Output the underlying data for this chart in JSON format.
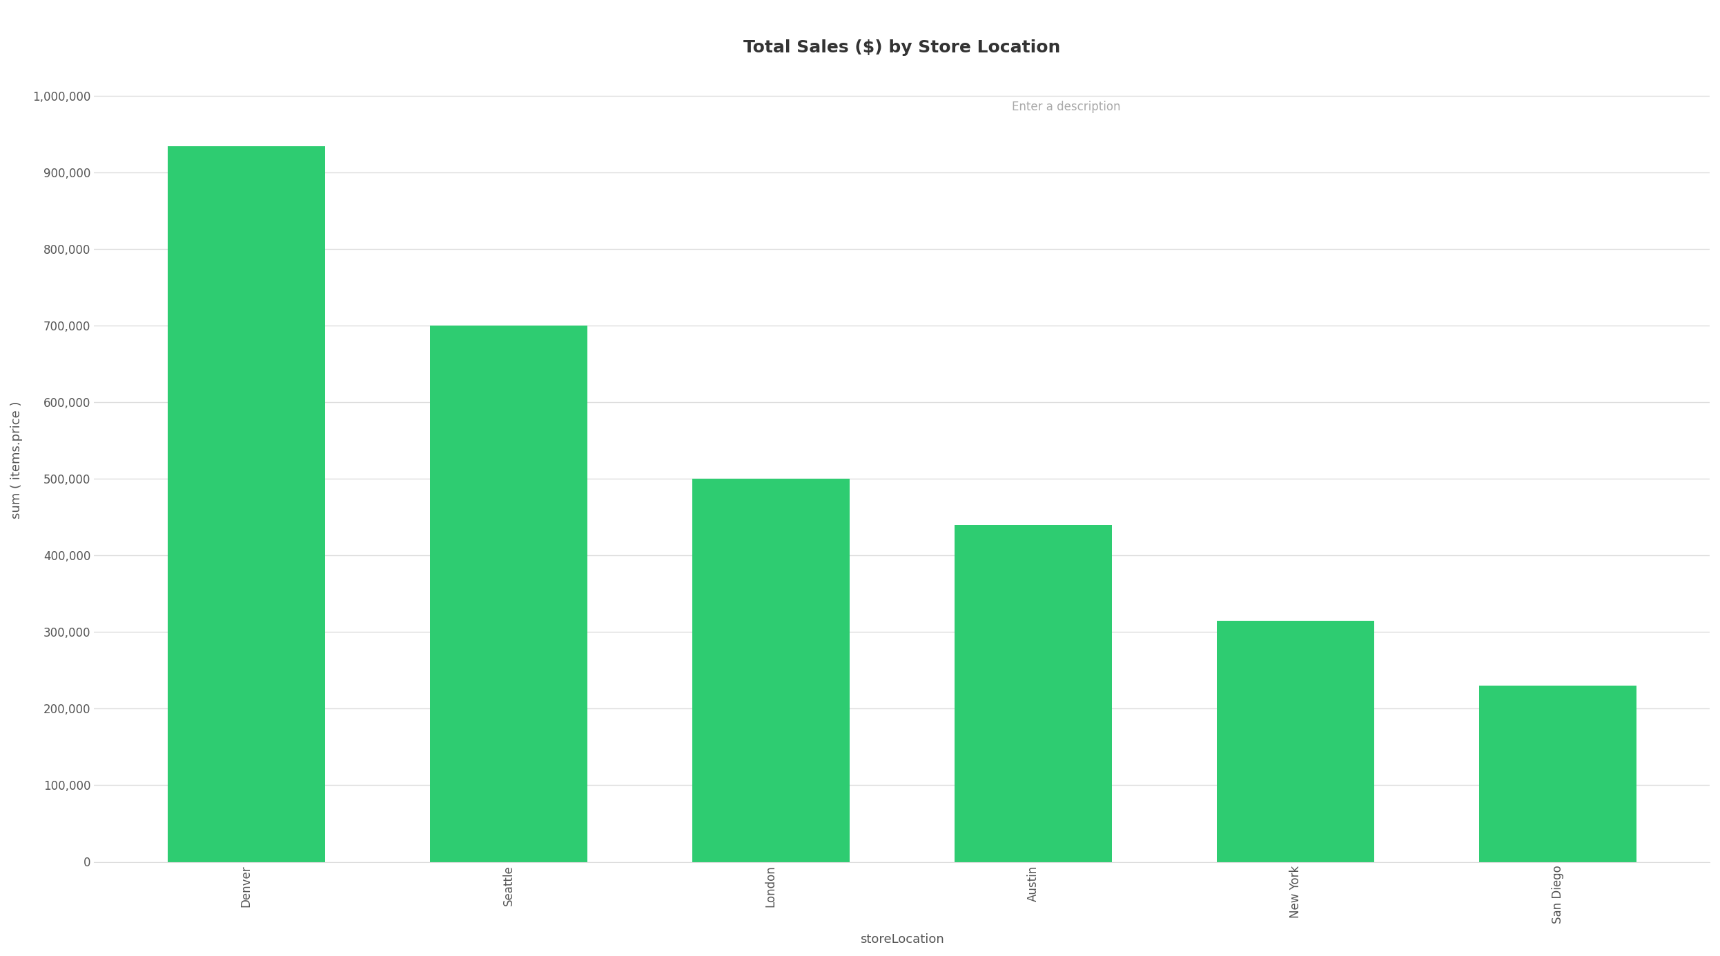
{
  "title": "Total Sales ($) by Store Location",
  "subtitle": "Enter a description",
  "xlabel": "storeLocation",
  "ylabel": "sum ( items.price )",
  "categories": [
    "Denver",
    "Seattle",
    "London",
    "Austin",
    "New York",
    "San Diego"
  ],
  "values": [
    935000,
    700000,
    500000,
    440000,
    315000,
    230000
  ],
  "bar_color": "#2ecc71",
  "bar_edge_color": "#2ecc71",
  "background_color": "#ffffff",
  "plot_bg_color": "#ffffff",
  "grid_color": "#dddddd",
  "yticks": [
    0,
    100000,
    200000,
    300000,
    400000,
    500000,
    600000,
    700000,
    800000,
    900000,
    1000000
  ],
  "ylim": [
    0,
    1050000
  ],
  "title_fontsize": 18,
  "subtitle_fontsize": 12,
  "axis_label_fontsize": 13,
  "tick_fontsize": 12
}
